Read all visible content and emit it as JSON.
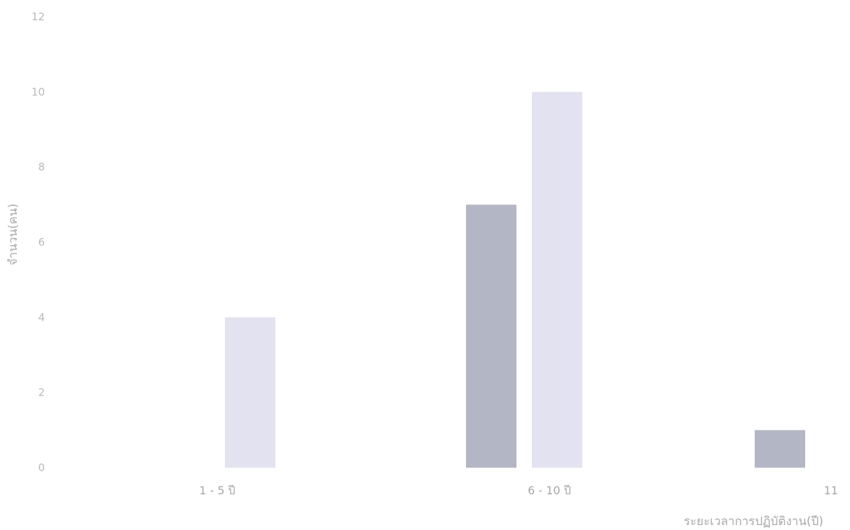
{
  "chart_data": {
    "type": "bar",
    "categories": [
      "1 - 5 ปี",
      "6 - 10 ปี",
      "11"
    ],
    "series": [
      {
        "color": "#b3b6c5",
        "values": [
          0,
          7,
          1
        ]
      },
      {
        "color": "#e2e2f0",
        "values": [
          4,
          10,
          0
        ]
      }
    ],
    "ylabel": "จำนวน(คน)",
    "xlabel": "ระยะเวลาการปฏิบัติงาน(ปี)",
    "ylim": [
      0,
      12
    ],
    "yticks": [
      0,
      2,
      4,
      6,
      8,
      10,
      12
    ],
    "grid": false,
    "legend": "none"
  }
}
